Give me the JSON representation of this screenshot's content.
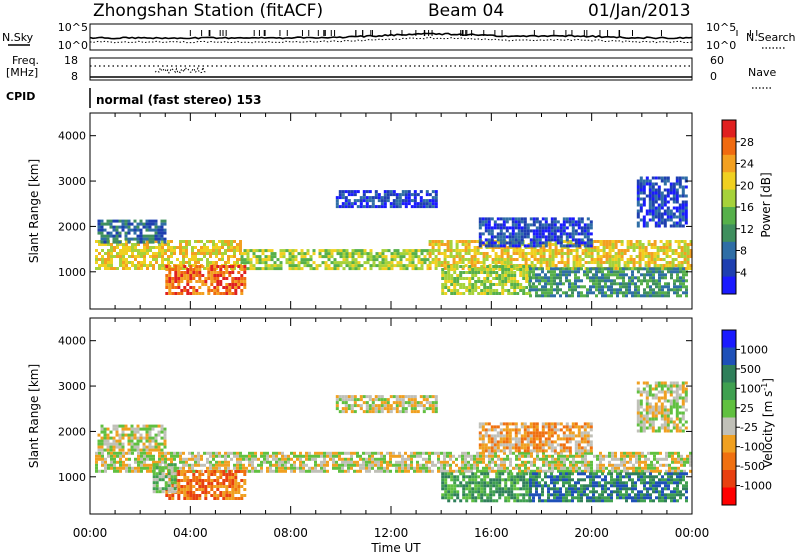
{
  "header": {
    "station": "Zhongshan Station (fitACF)",
    "beam": "Beam 04",
    "date": "01/Jan/2013"
  },
  "status_panels": {
    "nsky_label": "N.Sky",
    "nsearch_label": "N.Search",
    "nsky_ticks": [
      "10^5",
      "10^0"
    ],
    "nsearch_ticks": [
      "10^5",
      "10^0"
    ],
    "freq_label_1": "Freq.",
    "freq_label_2": "[MHz]",
    "freq_ticks": [
      "18",
      "8"
    ],
    "nave_label": "Nave",
    "nave_ticks": [
      "60",
      "0"
    ],
    "cpid_label": "CPID",
    "cpid_value": "normal (fast stereo) 153"
  },
  "colors": {
    "power_scale": [
      "#1a1aff",
      "#1e3fb0",
      "#2f6ea6",
      "#3f8f5e",
      "#56b04a",
      "#a6d23a",
      "#f0d020",
      "#f3a020",
      "#f06a10",
      "#e02020"
    ],
    "velocity_scale": [
      "#1a1aff",
      "#1e50b8",
      "#2f7f5a",
      "#3fa050",
      "#60c040",
      "#c8c8c0",
      "#f0a020",
      "#f07010",
      "#e84010",
      "#ff0000"
    ],
    "ground_scatter": "#c0c0b8"
  },
  "chart_data": [
    {
      "type": "heatmap",
      "name": "power",
      "xlabel": "Time UT",
      "ylabel": "Slant Range [km]",
      "xlim": [
        0,
        24
      ],
      "ylim": [
        180,
        4500
      ],
      "x_ticks": [
        "00:00",
        "04:00",
        "08:00",
        "12:00",
        "16:00",
        "20:00",
        "00:00"
      ],
      "y_ticks": [
        "1000",
        "2000",
        "3000",
        "4000"
      ],
      "colorbar_label": "Power [dB]",
      "colorbar_ticks": [
        "4",
        "8",
        "12",
        "16",
        "20",
        "24",
        "28"
      ],
      "colorbar_range": [
        0,
        30
      ],
      "regions": [
        {
          "t0": 0.2,
          "t1": 6.0,
          "r0": 1100,
          "r1": 1700,
          "level": 6
        },
        {
          "t0": 6.0,
          "t1": 13.5,
          "r0": 1100,
          "r1": 1500,
          "level": 5
        },
        {
          "t0": 13.5,
          "t1": 24,
          "r0": 1100,
          "r1": 1700,
          "level": 6
        },
        {
          "t0": 0.3,
          "t1": 3.0,
          "r0": 1650,
          "r1": 2150,
          "level": 2
        },
        {
          "t0": 3.0,
          "t1": 6.2,
          "r0": 500,
          "r1": 1150,
          "level": 8
        },
        {
          "t0": 14.0,
          "t1": 17.5,
          "r0": 500,
          "r1": 1150,
          "level": 5
        },
        {
          "t0": 17.5,
          "t1": 23.8,
          "r0": 500,
          "r1": 1100,
          "level": 3
        },
        {
          "t0": 9.8,
          "t1": 13.8,
          "r0": 2450,
          "r1": 2800,
          "level": 1
        },
        {
          "t0": 21.8,
          "t1": 23.8,
          "r0": 2000,
          "r1": 3100,
          "level": 1
        },
        {
          "t0": 15.5,
          "t1": 20.0,
          "r0": 1600,
          "r1": 2200,
          "level": 1
        }
      ]
    },
    {
      "type": "heatmap",
      "name": "velocity",
      "xlabel": "Time UT",
      "ylabel": "Slant Range [km]",
      "xlim": [
        0,
        24
      ],
      "ylim": [
        180,
        4500
      ],
      "x_ticks": [
        "00:00",
        "04:00",
        "08:00",
        "12:00",
        "16:00",
        "20:00",
        "00:00"
      ],
      "y_ticks": [
        "1000",
        "2000",
        "3000",
        "4000"
      ],
      "colorbar_label": "Velocity [m s^-1]",
      "colorbar_ticks": [
        "1000",
        "500",
        "100",
        "25",
        "-25",
        "-100",
        "-500",
        "-1000"
      ],
      "colorbar_range": [
        -1000,
        1000
      ],
      "regions": [
        {
          "t0": 0.2,
          "t1": 24,
          "r0": 1150,
          "r1": 1550,
          "level": 5
        },
        {
          "t0": 0.3,
          "t1": 3.0,
          "r0": 1600,
          "r1": 2150,
          "level": 5
        },
        {
          "t0": 3.0,
          "t1": 6.2,
          "r0": 500,
          "r1": 1150,
          "level": 7
        },
        {
          "t0": 2.5,
          "t1": 3.4,
          "r0": 700,
          "r1": 1300,
          "level": 4
        },
        {
          "t0": 14.0,
          "t1": 17.5,
          "r0": 500,
          "r1": 1100,
          "level": 3
        },
        {
          "t0": 17.5,
          "t1": 23.8,
          "r0": 500,
          "r1": 1100,
          "level": 2
        },
        {
          "t0": 9.8,
          "t1": 13.8,
          "r0": 2450,
          "r1": 2800,
          "level": 5
        },
        {
          "t0": 21.8,
          "t1": 23.8,
          "r0": 2000,
          "r1": 3100,
          "level": 5
        },
        {
          "t0": 15.5,
          "t1": 20.0,
          "r0": 1600,
          "r1": 2200,
          "level": 6
        }
      ]
    }
  ]
}
